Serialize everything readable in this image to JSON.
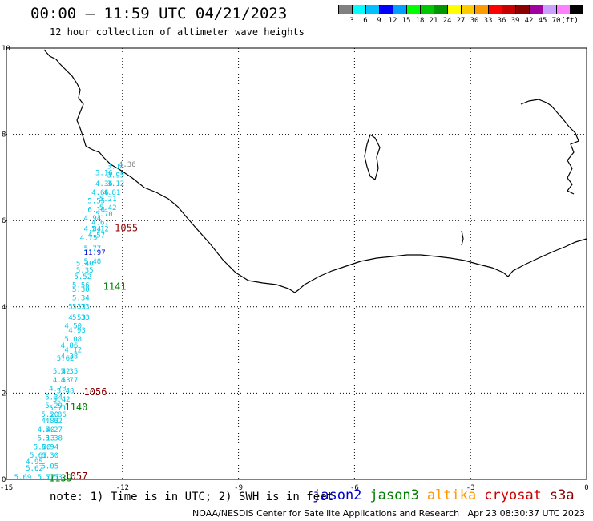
{
  "header": {
    "title": "00:00 – 11:59 UTC 04/21/2023",
    "subtitle": "12 hour collection of altimeter wave heights"
  },
  "legend": {
    "colors": [
      "#808080",
      "#00ffff",
      "#00c0ff",
      "#0000ff",
      "#00a0ff",
      "#00ff00",
      "#00c800",
      "#009600",
      "#ffff00",
      "#ffcc00",
      "#ff9900",
      "#ff0000",
      "#c80000",
      "#8b0000",
      "#a000a0",
      "#c8a0ff",
      "#ff80ff",
      "#000000"
    ],
    "labels": [
      "3",
      "6",
      "9",
      "12",
      "15",
      "18",
      "21",
      "24",
      "27",
      "30",
      "33",
      "36",
      "39",
      "42",
      "45",
      "70",
      "(ft)"
    ]
  },
  "axes": {
    "x_ticks": [
      "-15",
      "-12",
      "-9",
      "-6",
      "-3",
      "0"
    ],
    "y_ticks": [
      "0",
      "2",
      "4",
      "6",
      "8",
      "10"
    ]
  },
  "chart_data": {
    "type": "scatter",
    "xlim": [
      -15,
      0
    ],
    "ylim": [
      0,
      10
    ],
    "grid": true,
    "pass_labels": [
      {
        "text": "1055",
        "x": -12.2,
        "y": 5.75,
        "color": "#8b0000"
      },
      {
        "text": "1141",
        "x": -12.5,
        "y": 4.4,
        "color": "#008000"
      },
      {
        "text": "1056",
        "x": -13.0,
        "y": 1.95,
        "color": "#8b0000"
      },
      {
        "text": "1140",
        "x": -13.5,
        "y": 1.6,
        "color": "#008000"
      },
      {
        "text": "1139",
        "x": -13.9,
        "y": -0.05,
        "color": "#008000"
      },
      {
        "text": "1057",
        "x": -13.5,
        "y": 0.0,
        "color": "#8b0000"
      }
    ],
    "track_cyan": [
      {
        "x": -12.4,
        "y": 7.2,
        "v": "3.14"
      },
      {
        "x": -12.7,
        "y": 7.05,
        "v": "3.16"
      },
      {
        "x": -12.4,
        "y": 7.0,
        "v": "3.95"
      },
      {
        "x": -12.7,
        "y": 6.8,
        "v": "4.36"
      },
      {
        "x": -12.4,
        "y": 6.8,
        "v": "3.12"
      },
      {
        "x": -12.8,
        "y": 6.6,
        "v": "4.66"
      },
      {
        "x": -12.5,
        "y": 6.6,
        "v": "4.81"
      },
      {
        "x": -12.9,
        "y": 6.4,
        "v": "5.55"
      },
      {
        "x": -12.6,
        "y": 6.45,
        "v": "5.21"
      },
      {
        "x": -12.9,
        "y": 6.2,
        "v": "6.16"
      },
      {
        "x": -12.6,
        "y": 6.25,
        "v": "5.42"
      },
      {
        "x": -12.7,
        "y": 6.1,
        "v": "5.70"
      },
      {
        "x": -13.0,
        "y": 6.0,
        "v": "4.94"
      },
      {
        "x": -12.8,
        "y": 5.9,
        "v": "4.67"
      },
      {
        "x": -13.0,
        "y": 5.75,
        "v": "4.84"
      },
      {
        "x": -12.8,
        "y": 5.75,
        "v": "5.12"
      },
      {
        "x": -13.1,
        "y": 5.55,
        "v": "4.75"
      },
      {
        "x": -12.9,
        "y": 5.6,
        "v": "4.57"
      },
      {
        "x": -13.0,
        "y": 5.3,
        "v": "5.77"
      },
      {
        "x": -13.2,
        "y": 4.95,
        "v": "5.40"
      },
      {
        "x": -13.0,
        "y": 5.0,
        "v": "5.48"
      },
      {
        "x": -13.2,
        "y": 4.8,
        "v": "5.35"
      },
      {
        "x": -13.25,
        "y": 4.65,
        "v": "5.52"
      },
      {
        "x": -13.3,
        "y": 4.45,
        "v": "5.56"
      },
      {
        "x": -13.3,
        "y": 4.35,
        "v": "5.30"
      },
      {
        "x": -13.3,
        "y": 4.15,
        "v": "5.34"
      },
      {
        "x": -13.4,
        "y": 3.95,
        "v": "5.33"
      },
      {
        "x": -13.3,
        "y": 3.95,
        "v": "5.73"
      },
      {
        "x": -13.4,
        "y": 3.7,
        "v": "4.53"
      },
      {
        "x": -13.3,
        "y": 3.7,
        "v": "5.33"
      },
      {
        "x": -13.5,
        "y": 3.5,
        "v": "4.50"
      },
      {
        "x": -13.4,
        "y": 3.4,
        "v": "4.93"
      },
      {
        "x": -13.5,
        "y": 3.2,
        "v": "5.08"
      },
      {
        "x": -13.6,
        "y": 3.05,
        "v": "4.86"
      },
      {
        "x": -13.5,
        "y": 2.95,
        "v": "4.12"
      },
      {
        "x": -13.7,
        "y": 2.75,
        "v": "5.62"
      },
      {
        "x": -13.6,
        "y": 2.8,
        "v": "4.38"
      },
      {
        "x": -13.8,
        "y": 2.45,
        "v": "5.42"
      },
      {
        "x": -13.6,
        "y": 2.45,
        "v": "5.35"
      },
      {
        "x": -13.8,
        "y": 2.25,
        "v": "4.53"
      },
      {
        "x": -13.6,
        "y": 2.25,
        "v": "4.77"
      },
      {
        "x": -13.9,
        "y": 2.05,
        "v": "4.73"
      },
      {
        "x": -13.7,
        "y": 2.0,
        "v": "5.48"
      },
      {
        "x": -14.0,
        "y": 1.85,
        "v": "5.34"
      },
      {
        "x": -13.8,
        "y": 1.8,
        "v": "5.42"
      },
      {
        "x": -14.0,
        "y": 1.65,
        "v": "5.29"
      },
      {
        "x": -13.9,
        "y": 1.6,
        "v": "5.71"
      },
      {
        "x": -14.1,
        "y": 1.45,
        "v": "5.20"
      },
      {
        "x": -13.9,
        "y": 1.45,
        "v": "5.86"
      },
      {
        "x": -14.1,
        "y": 1.3,
        "v": "4.83"
      },
      {
        "x": -14.0,
        "y": 1.3,
        "v": "4.62"
      },
      {
        "x": -14.2,
        "y": 1.1,
        "v": "4.40"
      },
      {
        "x": -14.0,
        "y": 1.1,
        "v": "5.27"
      },
      {
        "x": -14.2,
        "y": 0.9,
        "v": "5.13"
      },
      {
        "x": -14.0,
        "y": 0.9,
        "v": "5.38"
      },
      {
        "x": -14.3,
        "y": 0.7,
        "v": "5.00"
      },
      {
        "x": -14.1,
        "y": 0.7,
        "v": "5.94"
      },
      {
        "x": -14.4,
        "y": 0.5,
        "v": "5.61"
      },
      {
        "x": -14.1,
        "y": 0.5,
        "v": "6.30"
      },
      {
        "x": -14.5,
        "y": 0.35,
        "v": "4.95"
      },
      {
        "x": -14.5,
        "y": 0.2,
        "v": "5.62"
      },
      {
        "x": -14.1,
        "y": 0.25,
        "v": "5.05"
      },
      {
        "x": -14.8,
        "y": 0.0,
        "v": "5.69"
      },
      {
        "x": -14.2,
        "y": 0.0,
        "v": "5.77"
      },
      {
        "x": -14.0,
        "y": 0.0,
        "v": "5.53"
      }
    ],
    "track_blue": [
      {
        "x": -13.0,
        "y": 5.2,
        "v": "11.97"
      }
    ],
    "track_gray": [
      {
        "x": -12.1,
        "y": 7.25,
        "v": "4.36"
      }
    ]
  },
  "footer": {
    "note": "note:  1) Time is in UTC; 2) SWH is in feet",
    "satellites": [
      {
        "name": "jason2",
        "color": "#0000cc"
      },
      {
        "name": "jason3",
        "color": "#008000"
      },
      {
        "name": "altika",
        "color": "#ff9900"
      },
      {
        "name": "cryosat",
        "color": "#cc0000"
      },
      {
        "name": "s3a",
        "color": "#8b0000"
      }
    ],
    "credit": "NOAA/NESDIS Center for Satellite Applications and Research",
    "generated": "Apr 23 08:30:37 UTC 2023"
  }
}
